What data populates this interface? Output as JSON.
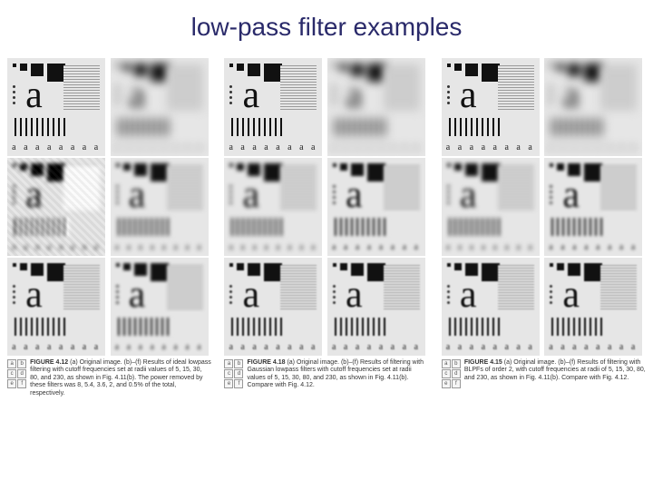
{
  "title": "low-pass filter examples",
  "panels": [
    {
      "id": "ideal",
      "grid_cols": 2,
      "grid_rows": 3,
      "cells": [
        "sharp",
        "blur-1",
        "ring",
        "blur-2",
        "blur-4",
        "blur-3"
      ],
      "caption_matrix": [
        "a",
        "b",
        "c",
        "d",
        "e",
        "f"
      ],
      "caption_fig": "FIGURE 4.12",
      "caption_text": "(a) Original image. (b)–(f) Results of ideal lowpass filtering with cutoff frequencies set at radii values of 5, 15, 30, 80, and 230, as shown in Fig. 4.11(b). The power removed by these filters was 8, 5.4, 3.6, 2, and 0.5% of the total, respectively."
    },
    {
      "id": "gaussian",
      "grid_cols": 2,
      "grid_rows": 3,
      "cells": [
        "sharp",
        "blur-1",
        "blur-2",
        "blur-3",
        "blur-4",
        "blur-4"
      ],
      "caption_matrix": [
        "a",
        "b",
        "c",
        "d",
        "e",
        "f"
      ],
      "caption_fig": "FIGURE 4.18",
      "caption_text": "(a) Original image. (b)–(f) Results of filtering with Gaussian lowpass filters with cutoff frequencies set at radii values of 5, 15, 30, 80, and 230, as shown in Fig. 4.11(b). Compare with Fig. 4.12."
    },
    {
      "id": "butterworth",
      "grid_cols": 2,
      "grid_rows": 3,
      "cells": [
        "sharp",
        "blur-1",
        "blur-2",
        "blur-3",
        "blur-4",
        "blur-4"
      ],
      "caption_matrix": [
        "a",
        "b",
        "c",
        "d",
        "e",
        "f"
      ],
      "caption_fig": "FIGURE 4.15",
      "caption_text": "(a) Original image. (b)–(f) Results of filtering with BLPFs of order 2, with cutoff frequencies at radii of 5, 15, 30, 80, and 230, as shown in Fig. 4.11(b). Compare with Fig. 4.12."
    }
  ],
  "pattern": {
    "small_a_row": "a a a a a a a a",
    "big_a": "a"
  },
  "colors": {
    "title": "#2a2a6a",
    "cell_bg": "#e6e6e6",
    "page_bg": "#ffffff",
    "ink": "#111111"
  }
}
